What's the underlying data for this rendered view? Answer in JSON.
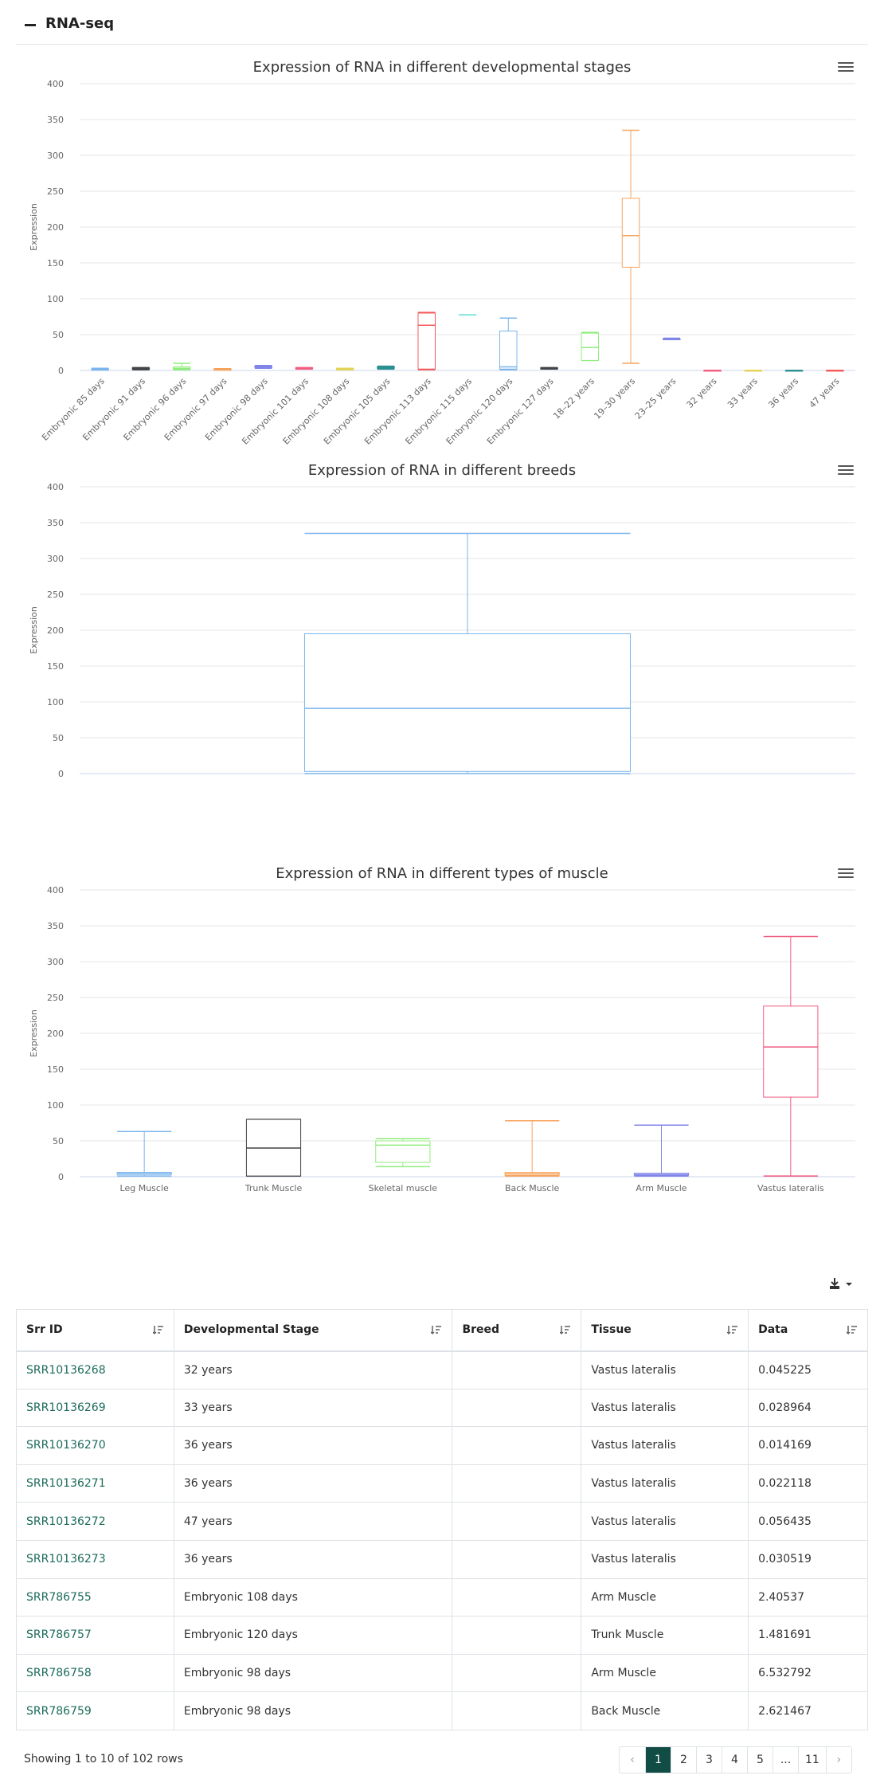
{
  "section": {
    "title": "RNA-seq"
  },
  "chart_data": [
    {
      "type": "box",
      "title": "Expression of RNA in different developmental stages",
      "ylabel": "Expression",
      "ylim": [
        0,
        400
      ],
      "yticks": [
        0,
        50,
        100,
        150,
        200,
        250,
        300,
        350,
        400
      ],
      "categories": [
        "Embryonic 85 days",
        "Embryonic 91 days",
        "Embryonic 96 days",
        "Embryonic 97 days",
        "Embryonic 98 days",
        "Embryonic 101 days",
        "Embryonic 108 days",
        "Embryonic 105 days",
        "Embryonic 113 days",
        "Embryonic 115 days",
        "Embryonic 120 days",
        "Embryonic 127 days",
        "18–22 years",
        "19–30 years",
        "23–25 years",
        "32 years",
        "33 years",
        "36 years",
        "47 years"
      ],
      "colors": [
        "#7cb5ec",
        "#434348",
        "#90ed7d",
        "#f7a35c",
        "#8085e9",
        "#f15c80",
        "#e4d354",
        "#2b908f",
        "#f45b5b",
        "#91e8e1",
        "#7cb5ec",
        "#434348",
        "#90ed7d",
        "#f7a35c",
        "#8085e9",
        "#f15c80",
        "#e4d354",
        "#2b908f",
        "#f45b5b"
      ],
      "boxes": [
        [
          0.5,
          1,
          1.5,
          2,
          3
        ],
        [
          1,
          2,
          3,
          3.5,
          4
        ],
        [
          1,
          2,
          3,
          5,
          10
        ],
        [
          0.5,
          1,
          1.5,
          2,
          2.5
        ],
        [
          3,
          4,
          5,
          6,
          7
        ],
        [
          2,
          2.5,
          3,
          3.5,
          4
        ],
        [
          1,
          1.5,
          2,
          2.5,
          3
        ],
        [
          2,
          3,
          4,
          5,
          6
        ],
        [
          1,
          2,
          63,
          80,
          81
        ],
        [
          78,
          78,
          78,
          78,
          78
        ],
        [
          1,
          2,
          5,
          55,
          73
        ],
        [
          2,
          2.5,
          3,
          3.5,
          4
        ],
        [
          14,
          14,
          32,
          52,
          53
        ],
        [
          10,
          144,
          188,
          240,
          335
        ],
        [
          43,
          43,
          44,
          44,
          45
        ],
        [
          0.02,
          0.03,
          0.045,
          0.05,
          0.06
        ],
        [
          0.02,
          0.025,
          0.029,
          0.035,
          0.04
        ],
        [
          0.014,
          0.018,
          0.022,
          0.026,
          0.03
        ],
        [
          0.04,
          0.05,
          0.056,
          0.06,
          0.07
        ]
      ]
    },
    {
      "type": "box",
      "title": "Expression of RNA in different breeds",
      "ylabel": "Expression",
      "ylim": [
        0,
        400
      ],
      "yticks": [
        0,
        50,
        100,
        150,
        200,
        250,
        300,
        350,
        400
      ],
      "categories": [
        ""
      ],
      "colors": [
        "#7cb5ec"
      ],
      "boxes": [
        [
          0,
          3,
          91,
          195,
          335
        ]
      ]
    },
    {
      "type": "box",
      "title": "Expression of RNA in different types of muscle",
      "ylabel": "Expression",
      "ylim": [
        0,
        400
      ],
      "yticks": [
        0,
        50,
        100,
        150,
        200,
        250,
        300,
        350,
        400
      ],
      "categories": [
        "Leg Muscle",
        "Trunk Muscle",
        "Skeletal muscle",
        "Back Muscle",
        "Arm Muscle",
        "Vastus lateralis"
      ],
      "colors": [
        "#7cb5ec",
        "#434348",
        "#90ed7d",
        "#f7a35c",
        "#8085e9",
        "#f15c80"
      ],
      "boxes": [
        [
          1,
          3,
          5,
          6,
          63
        ],
        [
          1,
          1,
          40,
          80,
          80
        ],
        [
          14,
          20,
          44,
          50,
          53
        ],
        [
          1,
          2,
          4,
          6,
          78
        ],
        [
          1,
          2,
          3,
          5,
          72
        ],
        [
          1,
          111,
          181,
          238,
          335
        ]
      ]
    }
  ],
  "table": {
    "columns": [
      "Srr ID",
      "Developmental Stage",
      "Breed",
      "Tissue",
      "Data"
    ],
    "rows": [
      [
        "SRR10136268",
        "32 years",
        "",
        "Vastus lateralis",
        "0.045225"
      ],
      [
        "SRR10136269",
        "33 years",
        "",
        "Vastus lateralis",
        "0.028964"
      ],
      [
        "SRR10136270",
        "36 years",
        "",
        "Vastus lateralis",
        "0.014169"
      ],
      [
        "SRR10136271",
        "36 years",
        "",
        "Vastus lateralis",
        "0.022118"
      ],
      [
        "SRR10136272",
        "47 years",
        "",
        "Vastus lateralis",
        "0.056435"
      ],
      [
        "SRR10136273",
        "36 years",
        "",
        "Vastus lateralis",
        "0.030519"
      ],
      [
        "SRR786755",
        "Embryonic 108 days",
        "",
        "Arm Muscle",
        "2.40537"
      ],
      [
        "SRR786757",
        "Embryonic 120 days",
        "",
        "Trunk Muscle",
        "1.481691"
      ],
      [
        "SRR786758",
        "Embryonic 98 days",
        "",
        "Arm Muscle",
        "6.532792"
      ],
      [
        "SRR786759",
        "Embryonic 98 days",
        "",
        "Back Muscle",
        "2.621467"
      ]
    ]
  },
  "footer": {
    "info": "Showing 1 to 10 of 102 rows",
    "pages": [
      "‹",
      "1",
      "2",
      "3",
      "4",
      "5",
      "...",
      "11",
      "›"
    ],
    "active_page": "1"
  },
  "icons": {
    "menu": "hamburger-icon",
    "download": "download-icon",
    "sort": "sort-icon",
    "collapse": "minus-icon"
  }
}
